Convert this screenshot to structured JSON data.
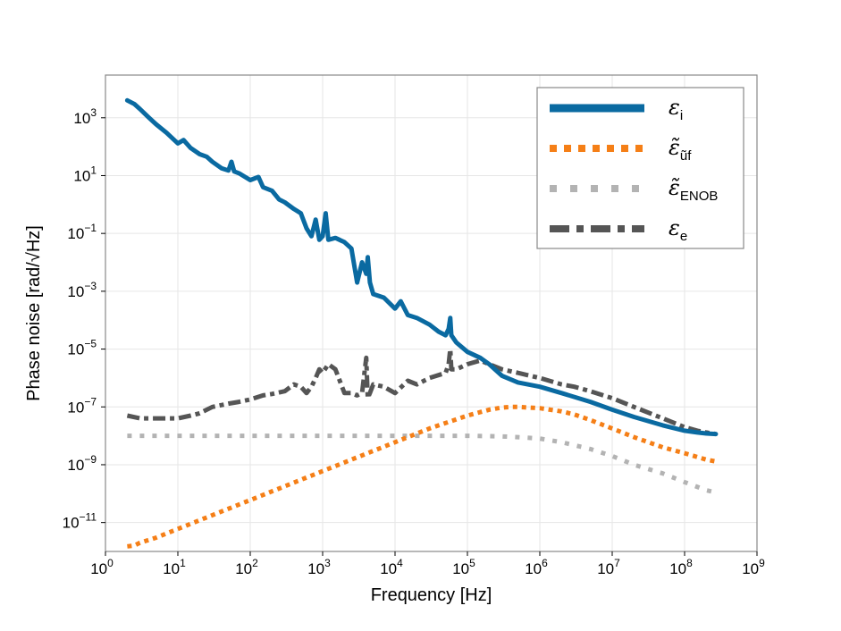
{
  "chart_data": {
    "type": "line",
    "title": "",
    "xlabel": "Frequency [Hz]",
    "ylabel": "Phase noise [rad/√Hz]",
    "x_scale": "log",
    "y_scale": "log",
    "xlim": [
      1,
      1000000000
    ],
    "ylim": [
      1e-12,
      30000.0
    ],
    "grid": true,
    "legend_position": "top-right",
    "x_ticks": [
      {
        "base": "10",
        "exp": "0"
      },
      {
        "base": "10",
        "exp": "1"
      },
      {
        "base": "10",
        "exp": "2"
      },
      {
        "base": "10",
        "exp": "3"
      },
      {
        "base": "10",
        "exp": "4"
      },
      {
        "base": "10",
        "exp": "5"
      },
      {
        "base": "10",
        "exp": "6"
      },
      {
        "base": "10",
        "exp": "7"
      },
      {
        "base": "10",
        "exp": "8"
      },
      {
        "base": "10",
        "exp": "9"
      }
    ],
    "y_ticks": [
      {
        "base": "10",
        "exp": "3"
      },
      {
        "base": "10",
        "exp": "1"
      },
      {
        "base": "10",
        "exp": "−1"
      },
      {
        "base": "10",
        "exp": "−3"
      },
      {
        "base": "10",
        "exp": "−5"
      },
      {
        "base": "10",
        "exp": "−7"
      },
      {
        "base": "10",
        "exp": "−9"
      },
      {
        "base": "10",
        "exp": "−11"
      }
    ],
    "series": [
      {
        "name": "ε_i",
        "label_main": "ε",
        "label_sub": "i",
        "color": "#0a6aa1",
        "style": "solid",
        "x": [
          2,
          2.5,
          3,
          4,
          5,
          7,
          10,
          12,
          15,
          20,
          25,
          30,
          40,
          50,
          55,
          60,
          70,
          100,
          130,
          150,
          200,
          250,
          300,
          400,
          500,
          600,
          700,
          800,
          900,
          1000,
          1100,
          1200,
          1500,
          2000,
          2500,
          3000,
          3500,
          4000,
          4200,
          4500,
          5000,
          7000,
          10000,
          12000,
          15000,
          20000,
          30000,
          40000,
          50000,
          55000,
          58000,
          60000,
          70000,
          100000,
          150000,
          200000,
          300000,
          500000,
          1000000,
          2000000,
          5000000,
          10000000,
          20000000,
          50000000,
          100000000,
          150000000,
          200000000,
          270000000
        ],
        "y": [
          4000,
          3000,
          2000,
          1000,
          600,
          300,
          130,
          170,
          90,
          55,
          45,
          30,
          18,
          15,
          30,
          14,
          12,
          7,
          9,
          4,
          3,
          1.5,
          1.2,
          0.7,
          0.5,
          0.15,
          0.08,
          0.3,
          0.06,
          0.08,
          0.5,
          0.06,
          0.07,
          0.05,
          0.03,
          0.002,
          0.01,
          0.004,
          0.015,
          0.002,
          0.0008,
          0.0006,
          0.00025,
          0.00045,
          0.00015,
          0.00012,
          7e-05,
          4e-05,
          3e-05,
          5e-05,
          0.00012,
          3e-05,
          1.7e-05,
          8e-06,
          5e-06,
          3e-06,
          1.2e-06,
          7e-07,
          5e-07,
          3e-07,
          1.5e-07,
          8e-08,
          4.5e-08,
          2.3e-08,
          1.5e-08,
          1.3e-08,
          1.2e-08,
          1.15e-08
        ]
      },
      {
        "name": "ε̃_ũf",
        "label_main": "ε̃",
        "label_sub": "ũf",
        "color": "#f57f17",
        "style": "dotted",
        "x": [
          2,
          2.5,
          3,
          5,
          10,
          100,
          1000,
          10000,
          30000,
          100000,
          200000,
          300000,
          400000,
          500000,
          700000,
          1000000,
          2000000,
          3000000,
          5000000,
          10000000,
          20000000,
          50000000,
          100000000,
          200000000,
          270000000
        ],
        "y": [
          1.5e-12,
          1.6e-12,
          2e-12,
          3e-12,
          6e-12,
          6e-11,
          6e-10,
          6e-09,
          1.8e-08,
          5e-08,
          8e-08,
          9.5e-08,
          1e-07,
          1e-07,
          9.5e-08,
          9e-08,
          7e-08,
          5.5e-08,
          3.5e-08,
          1.8e-08,
          9e-09,
          4e-09,
          2.5e-09,
          1.5e-09,
          1.3e-09
        ]
      },
      {
        "name": "ε̃_ENOB",
        "label_main": "ε̃",
        "label_sub": "ENOB",
        "color": "#b3b3b3",
        "style": "dotted-sparse",
        "x": [
          2,
          10,
          100,
          1000,
          10000,
          100000,
          300000,
          500000,
          1000000,
          2000000,
          5000000,
          10000000,
          20000000,
          50000000,
          100000000,
          200000000,
          270000000
        ],
        "y": [
          1e-08,
          1e-08,
          1e-08,
          1e-08,
          1e-08,
          1e-08,
          9.5e-09,
          9e-09,
          8e-09,
          6e-09,
          3.5e-09,
          2e-09,
          1e-09,
          5e-10,
          2.5e-10,
          1.3e-10,
          1.1e-10
        ]
      },
      {
        "name": "ε_e",
        "label_main": "ε",
        "label_sub": "e",
        "color": "#555555",
        "style": "dashdot",
        "x": [
          2,
          3,
          5,
          7,
          10,
          15,
          20,
          30,
          50,
          70,
          100,
          150,
          200,
          300,
          400,
          500,
          600,
          700,
          800,
          900,
          1000,
          1200,
          1500,
          2000,
          2500,
          3000,
          3500,
          4000,
          4200,
          4500,
          5000,
          7000,
          10000,
          15000,
          20000,
          30000,
          50000,
          55000,
          58000,
          60000,
          70000,
          100000,
          150000,
          200000,
          300000,
          500000,
          1000000,
          2000000,
          3000000,
          5000000,
          10000000,
          20000000,
          50000000,
          100000000,
          150000000,
          200000000,
          270000000
        ],
        "y": [
          5e-08,
          4e-08,
          4e-08,
          4e-08,
          4e-08,
          5e-08,
          6e-08,
          1e-07,
          1.3e-07,
          1.5e-07,
          1.8e-07,
          2.5e-07,
          2.8e-07,
          3.5e-07,
          6e-07,
          5e-07,
          3e-07,
          5e-07,
          1e-06,
          2e-06,
          1.5e-06,
          3e-06,
          2e-06,
          3e-07,
          3e-07,
          2.5e-07,
          3e-07,
          5e-06,
          2e-07,
          3e-07,
          6e-07,
          5e-07,
          3e-07,
          8e-07,
          6e-07,
          1e-06,
          1.5e-06,
          3e-06,
          1e-05,
          2e-06,
          2e-06,
          3e-06,
          4e-06,
          3e-06,
          2e-06,
          1.5e-06,
          1e-06,
          6e-07,
          5e-07,
          3.5e-07,
          2e-07,
          1e-07,
          4e-08,
          2e-08,
          1.5e-08,
          1.3e-08,
          1.15e-08
        ]
      }
    ]
  }
}
